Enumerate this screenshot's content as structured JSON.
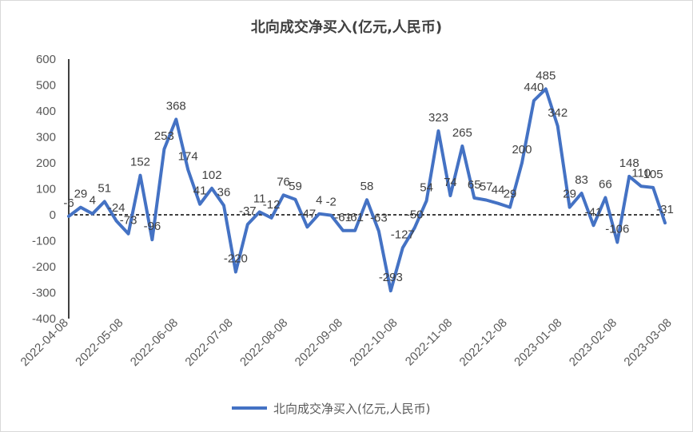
{
  "chart_data": {
    "type": "line",
    "title": "北向成交净买入(亿元,人民币)",
    "ylim": [
      -400,
      600
    ],
    "yticks": [
      -400,
      -300,
      -200,
      -100,
      0,
      100,
      200,
      300,
      400,
      500,
      600
    ],
    "xticks": [
      "2022-04-08",
      "2022-05-08",
      "2022-06-08",
      "2022-07-08",
      "2022-08-08",
      "2022-09-08",
      "2022-10-08",
      "2022-11-08",
      "2022-12-08",
      "2023-01-08",
      "2023-02-08",
      "2023-03-08"
    ],
    "legend": "bottom",
    "series": [
      {
        "name": "北向成交净买入(亿元,人民币)",
        "color": "#4472c4",
        "values": [
          -6,
          29,
          4,
          51,
          -24,
          -73,
          152,
          -96,
          253,
          368,
          174,
          41,
          102,
          36,
          -220,
          -37,
          11,
          -12,
          76,
          59,
          -47,
          4,
          -2,
          -61,
          -61,
          58,
          -63,
          -293,
          -127,
          -50,
          54,
          323,
          74,
          265,
          65,
          57,
          44,
          29,
          200,
          440,
          485,
          342,
          29,
          83,
          -41,
          66,
          -106,
          148,
          110,
          105,
          -31
        ]
      }
    ]
  }
}
